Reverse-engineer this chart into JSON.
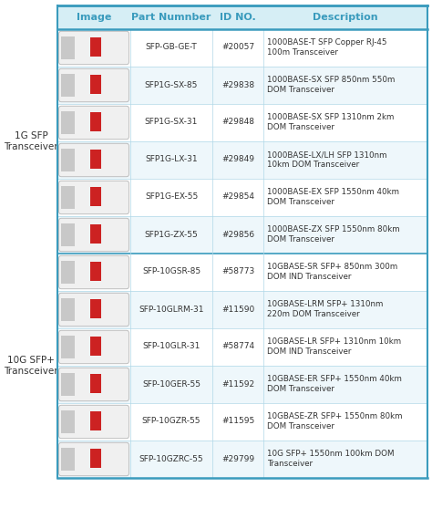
{
  "header_color": "#3a9bbd",
  "header_bg": "#d6eef5",
  "header_text_color": "#3a9bbd",
  "row_bg_white": "#ffffff",
  "row_bg_alt": "#eef7fb",
  "section_text_color": "#444444",
  "thin_border_color": "#b0d8e8",
  "thick_border_color": "#3a9bbd",
  "divider_color": "#3a9bbd",
  "headers": [
    "Image",
    "Part Numnber",
    "ID NO.",
    "Description"
  ],
  "section1_label": "1G SFP\nTransceiver",
  "section2_label": "10G SFP+\nTransceiver",
  "rows_1g": [
    {
      "part": "SFP-GB-GE-T",
      "id": "#20057",
      "desc": "1000BASE-T SFP Copper RJ-45\n100m Transceiver"
    },
    {
      "part": "SFP1G-SX-85",
      "id": "#29838",
      "desc": "1000BASE-SX SFP 850nm 550m\nDOM Transceiver"
    },
    {
      "part": "SFP1G-SX-31",
      "id": "#29848",
      "desc": "1000BASE-SX SFP 1310nm 2km\nDOM Transceiver"
    },
    {
      "part": "SFP1G-LX-31",
      "id": "#29849",
      "desc": "1000BASE-LX/LH SFP 1310nm\n10km DOM Transceiver"
    },
    {
      "part": "SFP1G-EX-55",
      "id": "#29854",
      "desc": "1000BASE-EX SFP 1550nm 40km\nDOM Transceiver"
    },
    {
      "part": "SFP1G-ZX-55",
      "id": "#29856",
      "desc": "1000BASE-ZX SFP 1550nm 80km\nDOM Transceiver"
    }
  ],
  "rows_10g": [
    {
      "part": "SFP-10GSR-85",
      "id": "#58773",
      "desc": "10GBASE-SR SFP+ 850nm 300m\nDOM IND Transceiver"
    },
    {
      "part": "SFP-10GLRM-31",
      "id": "#11590",
      "desc": "10GBASE-LRM SFP+ 1310nm\n220m DOM Transceiver"
    },
    {
      "part": "SFP-10GLR-31",
      "id": "#58774",
      "desc": "10GBASE-LR SFP+ 1310nm 10km\nDOM IND Transceiver"
    },
    {
      "part": "SFP-10GER-55",
      "id": "#11592",
      "desc": "10GBASE-ER SFP+ 1550nm 40km\nDOM Transceiver"
    },
    {
      "part": "SFP-10GZR-55",
      "id": "#11595",
      "desc": "10GBASE-ZR SFP+ 1550nm 80km\nDOM Transceiver"
    },
    {
      "part": "SFP-10GZRC-55",
      "id": "#29799",
      "desc": "10G SFP+ 1550nm 100km DOM\nTransceiver"
    }
  ],
  "figsize": [
    4.74,
    5.57
  ],
  "dpi": 100,
  "font_size_header": 8.0,
  "font_size_body": 6.5,
  "font_size_section": 7.5,
  "font_size_desc": 6.3
}
